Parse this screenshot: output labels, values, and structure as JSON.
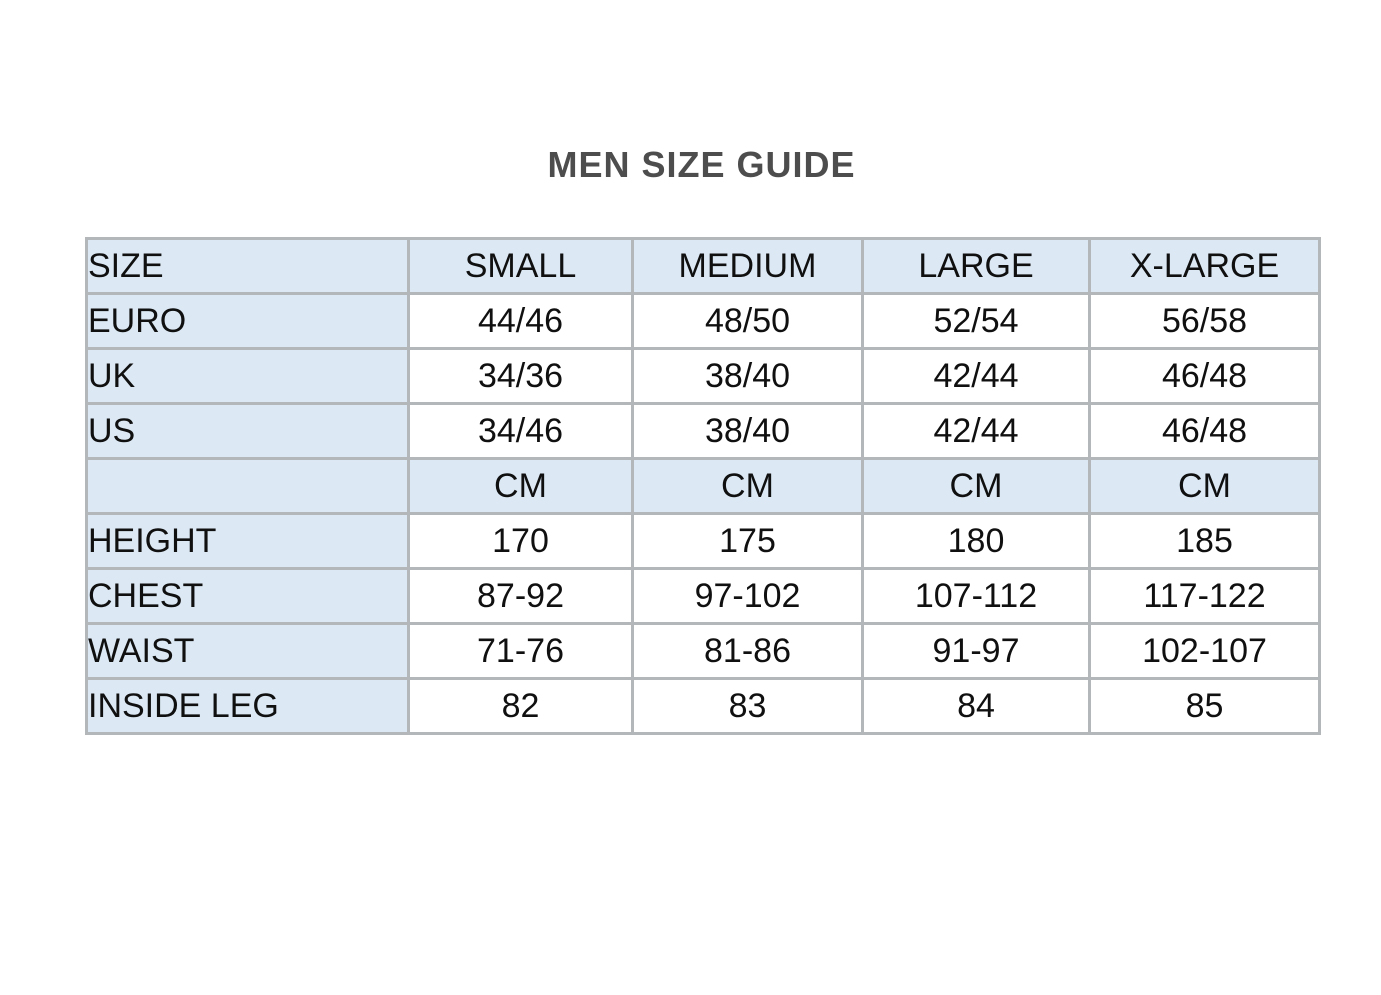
{
  "page": {
    "title": "MEN SIZE GUIDE"
  },
  "colors": {
    "shaded_cell_bg": "#dce9f5",
    "data_cell_bg": "#ffffff",
    "border": "#b3b7ba",
    "cell_text": "#101010",
    "title_text": "#4d4d4d"
  },
  "table": {
    "columns": [
      "SIZE",
      "SMALL",
      "MEDIUM",
      "LARGE",
      "X-LARGE"
    ],
    "rows": [
      {
        "label": "EURO",
        "values": [
          "44/46",
          "48/50",
          "52/54",
          "56/58"
        ]
      },
      {
        "label": "UK",
        "values": [
          "34/36",
          "38/40",
          "42/44",
          "46/48"
        ]
      },
      {
        "label": "US",
        "values": [
          "34/46",
          "38/40",
          "42/44",
          "46/48"
        ]
      },
      {
        "label": "",
        "values": [
          "CM",
          "CM",
          "CM",
          "CM"
        ]
      },
      {
        "label": "HEIGHT",
        "values": [
          "170",
          "175",
          "180",
          "185"
        ]
      },
      {
        "label": "CHEST",
        "values": [
          "87-92",
          "97-102",
          "107-112",
          "117-122"
        ]
      },
      {
        "label": "WAIST",
        "values": [
          "71-76",
          "81-86",
          "91-97",
          "102-107"
        ]
      },
      {
        "label": "INSIDE LEG",
        "values": [
          "82",
          "83",
          "84",
          "85"
        ]
      }
    ]
  }
}
